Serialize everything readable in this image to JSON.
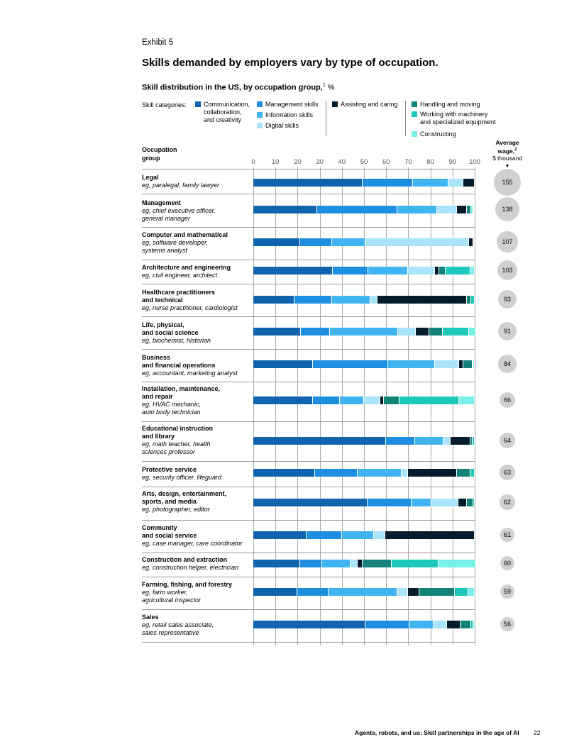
{
  "exhibit": "Exhibit 5",
  "title": "Skills demanded by employers vary by type of occupation.",
  "subtitle": "Skill distribution in the US, by occupation group,",
  "subtitle_sup": "1",
  "subtitle_unit": " %",
  "legend_label": "Skill categories:",
  "occupation_header": "Occupation\ngroup",
  "wage_header": {
    "title": "Average\nwage,",
    "sup": "2",
    "unit": "$ thousand",
    "arrow": "▼"
  },
  "footer": "Agents, robots, and us: Skill partnerships in the age of AI",
  "page_number": "22",
  "colors": {
    "Communication, collaboration, and creativity": "#0f64ad",
    "Management skills": "#1e8fe0",
    "Information skills": "#40b4f0",
    "Digital skills": "#a9e4fb",
    "Assisting and caring": "#051c2c",
    "Handling and moving": "#13827a",
    "Working with machinery and specialized equipment": "#1ec9bc",
    "Constructing": "#78efe7"
  },
  "legend_texts": {
    "comm": "Communication,\ncollaboration,\nand creativity",
    "mgmt": "Management skills",
    "info": "Information skills",
    "dig": "Digital skills",
    "assist": "Assisting and caring",
    "handling": "Handling and moving",
    "mach": "Working with machinery\nand specialized equipment",
    "constr": "Constructing"
  },
  "chart_data": {
    "type": "bar",
    "orientation": "horizontal",
    "stacked": true,
    "title": "Skill distribution in the US, by occupation group",
    "xlabel": "%",
    "xlim": [
      0,
      100
    ],
    "ticks": [
      0,
      10,
      20,
      30,
      40,
      50,
      60,
      70,
      80,
      90,
      100
    ],
    "series_names": [
      "Communication, collaboration, and creativity",
      "Management skills",
      "Information skills",
      "Digital skills",
      "Assisting and caring",
      "Handling and moving",
      "Working with machinery and specialized equipment",
      "Constructing"
    ],
    "categories": [
      {
        "name": "Legal",
        "example": "eg, paralegal, family lawyer",
        "values": [
          49.5,
          22.5,
          16,
          7,
          5,
          0,
          0,
          0
        ],
        "wage": 155
      },
      {
        "name": "Management",
        "example": "eg, chief executive officer,\ngeneral manager",
        "values": [
          29,
          36,
          18,
          9,
          4.5,
          2,
          0,
          1
        ],
        "wage": 138
      },
      {
        "name": "Computer and mathematical",
        "example": "eg, software developer,\nsystems analyst",
        "values": [
          21,
          14.5,
          15,
          47,
          2,
          0,
          0,
          0
        ],
        "wage": 107
      },
      {
        "name": "Architecture and engineering",
        "example": "eg, civil engineer, architect",
        "values": [
          36,
          16,
          18,
          12,
          2,
          3,
          11,
          2
        ],
        "wage": 103
      },
      {
        "name": "Healthcare practitioners\nand technical",
        "example": "eg, nurse practitioner, cardiologist",
        "values": [
          18.5,
          17,
          17.5,
          3,
          40.5,
          2,
          1.5,
          0
        ],
        "wage": 93
      },
      {
        "name": "Life, physical,\nand social science",
        "example": "eg, biochemist, historian",
        "values": [
          21.5,
          13,
          31,
          8,
          6,
          6,
          12,
          3
        ],
        "wage": 91
      },
      {
        "name": "Business\nand financial operations",
        "example": "eg, accountant, marketing analyst",
        "values": [
          27,
          34,
          21,
          11,
          2,
          4,
          0.5,
          0.5
        ],
        "wage": 84
      },
      {
        "name": "Installation, maintenance,\nand repair",
        "example": "eg, HVAC mechanic,\nauto body technician",
        "values": [
          27,
          12,
          11,
          7.5,
          1.5,
          7,
          27,
          7
        ],
        "wage": 66
      },
      {
        "name": "Educational instruction\nand library",
        "example": "eg, math teacher, health\nsciences professor",
        "values": [
          60,
          13,
          13,
          3,
          9,
          1,
          1,
          0
        ],
        "wage": 64
      },
      {
        "name": "Protective service",
        "example": "eg, security officer, lifeguard",
        "values": [
          28,
          19,
          20,
          3,
          22,
          6,
          2,
          0
        ],
        "wage": 63
      },
      {
        "name": "Arts, design, entertainment,\nsports, and media",
        "example": "eg, photographer, editor",
        "values": [
          51.5,
          20,
          9,
          12,
          4,
          3,
          0.5,
          0
        ],
        "wage": 62
      },
      {
        "name": "Community\nand social service",
        "example": "eg, case manager, care coordinator",
        "values": [
          24,
          16,
          14.5,
          5,
          40.5,
          0,
          0,
          0
        ],
        "wage": 61
      },
      {
        "name": "Construction and extraction",
        "example": "eg, construction helper, electrician",
        "values": [
          21,
          10,
          13,
          3,
          2.5,
          13,
          21,
          17
        ],
        "wage": 60
      },
      {
        "name": "Farming, fishing, and forestry",
        "example": "eg, farm worker,\nagricultural inspector",
        "values": [
          20,
          14,
          31,
          5,
          5,
          16,
          6,
          3
        ],
        "wage": 59
      },
      {
        "name": "Sales",
        "example": "eg, retail sales associate,\nsales representative",
        "values": [
          50.5,
          20,
          11,
          6,
          6,
          5,
          1,
          0.5
        ],
        "wage": 56
      }
    ]
  }
}
